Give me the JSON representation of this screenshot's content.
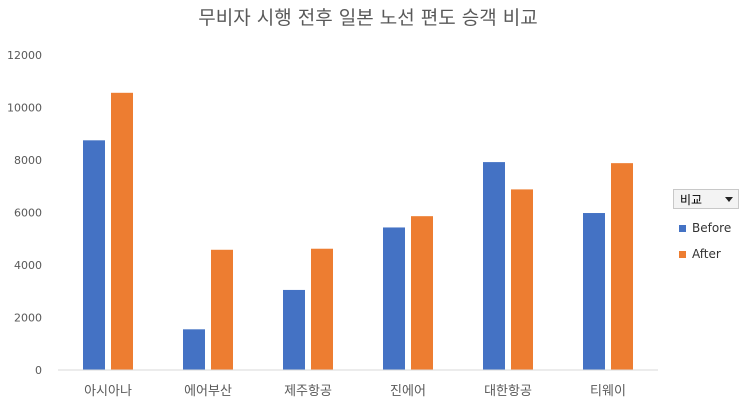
{
  "chart_data": {
    "type": "bar",
    "title": "무비자 시행 전후 일본 노선 편도 승객 비교",
    "xlabel": "",
    "ylabel": "",
    "categories": [
      "아시아나",
      "에어부산",
      "제주항공",
      "진에어",
      "대한항공",
      "티웨이"
    ],
    "series": [
      {
        "name": "Before",
        "color": "#4472C4",
        "values": [
          8750,
          1550,
          3050,
          5430,
          7920,
          5980
        ]
      },
      {
        "name": "After",
        "color": "#ED7D31",
        "values": [
          10560,
          4580,
          4620,
          5860,
          6880,
          7880
        ]
      }
    ],
    "ylim": [
      0,
      12000
    ],
    "yticks": [
      0,
      2000,
      4000,
      6000,
      8000,
      10000,
      12000
    ],
    "grid": false,
    "legend_position": "right",
    "legend_title": "비교"
  }
}
